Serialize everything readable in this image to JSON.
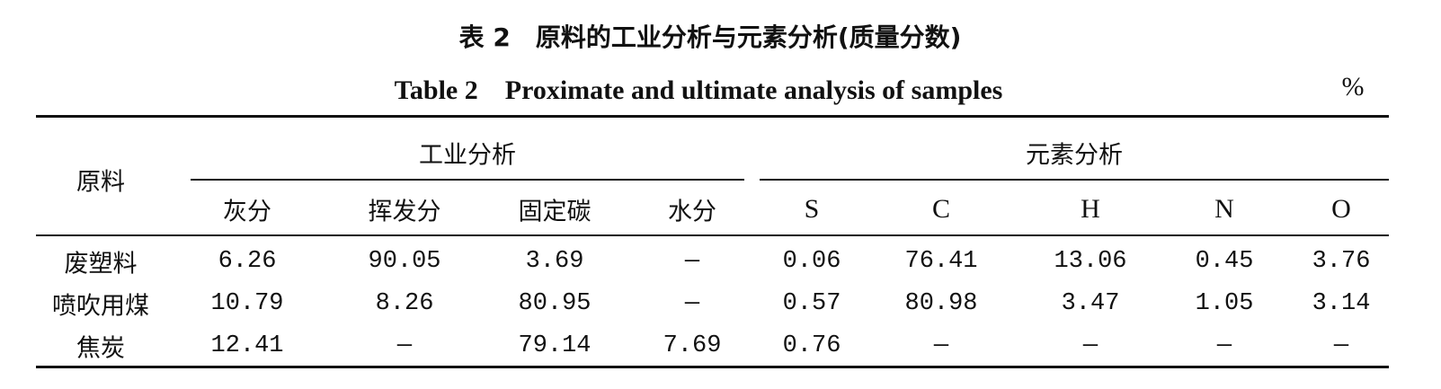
{
  "title_cn": "表 2　原料的工业分析与元素分析(质量分数)",
  "title_en": "Table 2　Proximate and ultimate analysis of samples",
  "unit": "%",
  "table": {
    "row_header": "原料",
    "groups": [
      "工业分析",
      "元素分析"
    ],
    "columns": [
      "灰分",
      "挥发分",
      "固定碳",
      "水分",
      "S",
      "C",
      "H",
      "N",
      "O"
    ],
    "rows": [
      {
        "label": "废塑料",
        "cells": [
          "6.26",
          "90.05",
          "3.69",
          "—",
          "0.06",
          "76.41",
          "13.06",
          "0.45",
          "3.76"
        ]
      },
      {
        "label": "喷吹用煤",
        "cells": [
          "10.79",
          "8.26",
          "80.95",
          "—",
          "0.57",
          "80.98",
          "3.47",
          "1.05",
          "3.14"
        ]
      },
      {
        "label": "焦炭",
        "cells": [
          "12.41",
          "—",
          "79.14",
          "7.69",
          "0.76",
          "—",
          "—",
          "—",
          "—"
        ]
      }
    ]
  }
}
